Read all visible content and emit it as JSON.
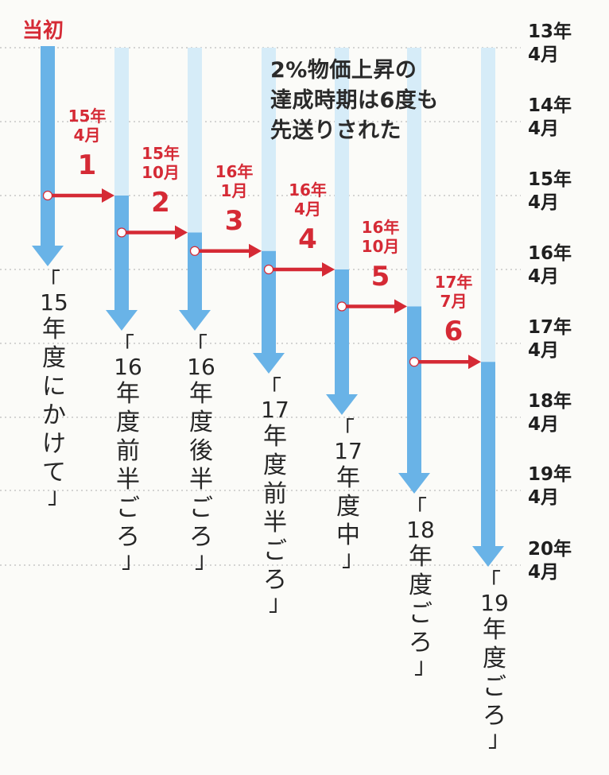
{
  "origin_label": "当初",
  "headline_lines": [
    "2%物価上昇の",
    "達成時期は6度も",
    "先送りされた"
  ],
  "chart_data": {
    "type": "diagram",
    "time_axis": [
      {
        "year": "13年",
        "month": "4月"
      },
      {
        "year": "14年",
        "month": "4月"
      },
      {
        "year": "15年",
        "month": "4月"
      },
      {
        "year": "16年",
        "month": "4月"
      },
      {
        "year": "17年",
        "month": "4月"
      },
      {
        "year": "18年",
        "month": "4月"
      },
      {
        "year": "19年",
        "month": "4月"
      },
      {
        "year": "20年",
        "month": "4月"
      }
    ],
    "targets": [
      {
        "open": "「",
        "digits": "15",
        "text": "年度にかけて",
        "close": "」"
      },
      {
        "open": "「",
        "digits": "16",
        "text": "年度前半ごろ",
        "close": "」"
      },
      {
        "open": "「",
        "digits": "16",
        "text": "年度後半ごろ",
        "close": "」"
      },
      {
        "open": "「",
        "digits": "17",
        "text": "年度前半ごろ",
        "close": "」"
      },
      {
        "open": "「",
        "digits": "17",
        "text": "年度中",
        "close": "」"
      },
      {
        "open": "「",
        "digits": "18",
        "text": "年度ごろ",
        "close": "」"
      },
      {
        "open": "「",
        "digits": "19",
        "text": "年度ごろ",
        "close": "」"
      }
    ],
    "revisions": [
      {
        "number": "1",
        "year": "15年",
        "month": "4月"
      },
      {
        "number": "2",
        "year": "15年",
        "month": "10月"
      },
      {
        "number": "3",
        "year": "16年",
        "month": "1月"
      },
      {
        "number": "4",
        "year": "16年",
        "month": "4月"
      },
      {
        "number": "5",
        "year": "16年",
        "month": "10月"
      },
      {
        "number": "6",
        "year": "17年",
        "month": "7月"
      }
    ],
    "colors": {
      "bar": "#69b3e7",
      "bar_faded": "#d6ecf8",
      "arrow": "#d52a35",
      "gridline": "#bdbdbd"
    }
  }
}
